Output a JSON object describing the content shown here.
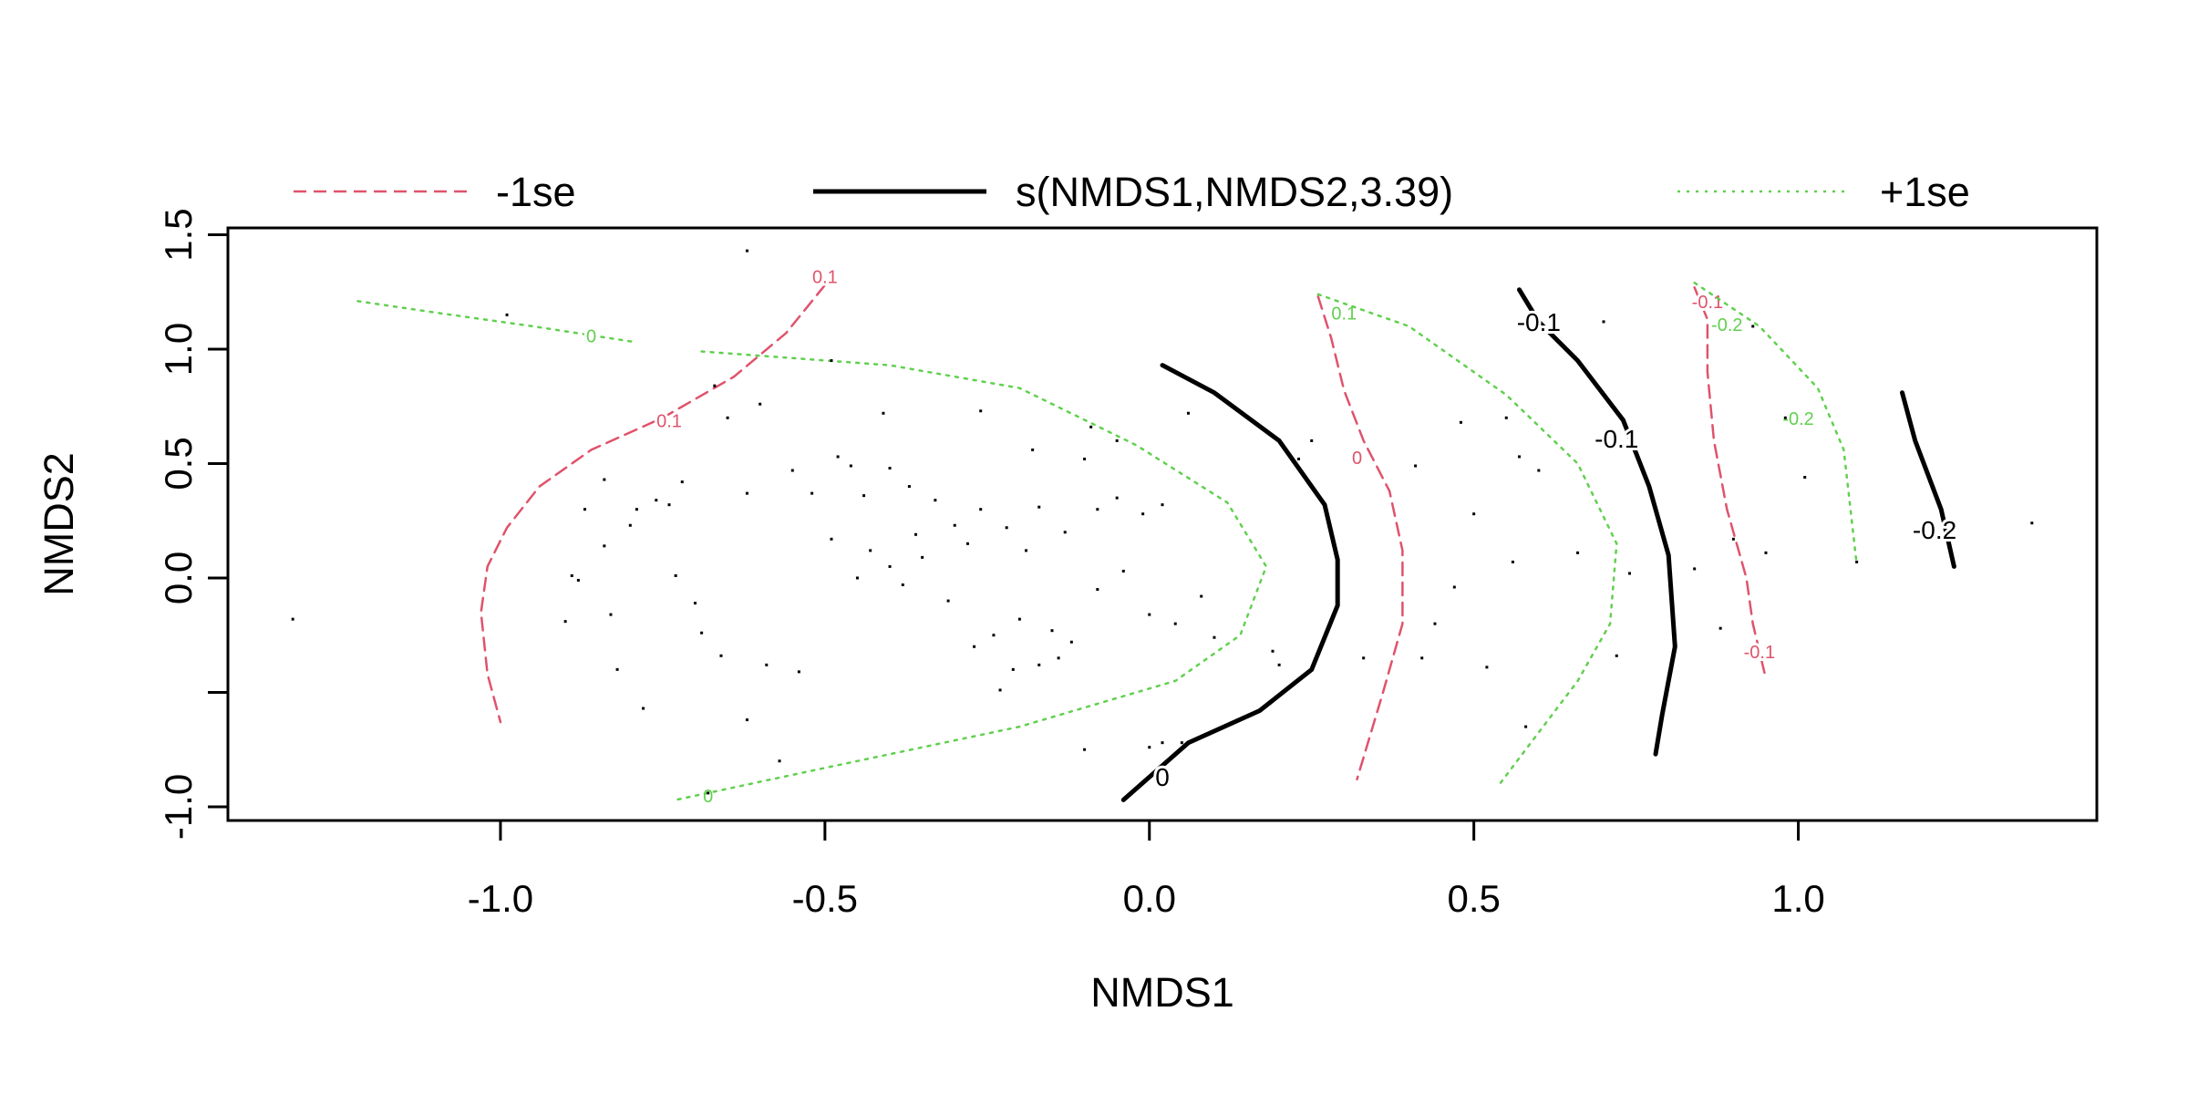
{
  "chart_data": {
    "type": "contour",
    "xlabel": "NMDS1",
    "ylabel": "NMDS2",
    "xlim": [
      -1.42,
      1.46
    ],
    "ylim": [
      -1.06,
      1.53
    ],
    "xticks": [
      -1.0,
      -0.5,
      0.0,
      0.5,
      1.0
    ],
    "xtick_labels": [
      "-1.0",
      "-0.5",
      "0.0",
      "0.5",
      "1.0"
    ],
    "yticks": [
      -1.0,
      -0.5,
      0.0,
      0.5,
      1.0,
      1.5
    ],
    "ytick_labels": [
      "-1.0",
      "",
      "0.0",
      "0.5",
      "1.0",
      "1.5"
    ],
    "grid": false,
    "legend_position": "top",
    "legend": [
      {
        "label": "-1se",
        "style": "dashed",
        "color": "#DF536B"
      },
      {
        "label": "s(NMDS1,NMDS2,3.39)",
        "style": "solid",
        "color": "#000000"
      },
      {
        "label": "+1se",
        "style": "dotted",
        "color": "#61D04F"
      }
    ],
    "contours": [
      {
        "series": "-1se",
        "level": "0.1",
        "label_at": [
          [
            -0.5,
            1.31
          ],
          [
            -0.74,
            0.68
          ]
        ],
        "points": [
          [
            -0.5,
            1.28
          ],
          [
            -0.56,
            1.07
          ],
          [
            -0.64,
            0.88
          ],
          [
            -0.75,
            0.7
          ],
          [
            -0.86,
            0.56
          ],
          [
            -0.94,
            0.4
          ],
          [
            -0.99,
            0.22
          ],
          [
            -1.02,
            0.05
          ],
          [
            -1.03,
            -0.15
          ],
          [
            -1.02,
            -0.42
          ],
          [
            -1.0,
            -0.63
          ]
        ]
      },
      {
        "series": "-1se",
        "level": "0",
        "label_at": [
          [
            0.32,
            0.52
          ]
        ],
        "points": [
          [
            0.26,
            1.23
          ],
          [
            0.28,
            1.05
          ],
          [
            0.3,
            0.82
          ],
          [
            0.33,
            0.6
          ],
          [
            0.37,
            0.38
          ],
          [
            0.39,
            0.12
          ],
          [
            0.39,
            -0.2
          ],
          [
            0.36,
            -0.5
          ],
          [
            0.32,
            -0.88
          ]
        ]
      },
      {
        "series": "-1se",
        "level": "-0.1",
        "label_at": [
          [
            0.86,
            1.2
          ],
          [
            0.94,
            -0.33
          ]
        ],
        "points": [
          [
            0.84,
            1.27
          ],
          [
            0.86,
            1.13
          ],
          [
            0.86,
            0.9
          ],
          [
            0.87,
            0.6
          ],
          [
            0.89,
            0.3
          ],
          [
            0.92,
            0.0
          ],
          [
            0.93,
            -0.2
          ],
          [
            0.95,
            -0.44
          ]
        ]
      },
      {
        "series": "s(NMDS1,NMDS2,3.39)",
        "level": "0",
        "label_at": [
          [
            0.02,
            -0.88
          ]
        ],
        "points": [
          [
            0.02,
            0.93
          ],
          [
            0.1,
            0.81
          ],
          [
            0.2,
            0.6
          ],
          [
            0.27,
            0.32
          ],
          [
            0.29,
            0.08
          ],
          [
            0.29,
            -0.12
          ],
          [
            0.25,
            -0.4
          ],
          [
            0.17,
            -0.58
          ],
          [
            0.06,
            -0.72
          ],
          [
            -0.04,
            -0.97
          ]
        ]
      },
      {
        "series": "s(NMDS1,NMDS2,3.39)",
        "level": "-0.1",
        "label_at": [
          [
            0.6,
            1.11
          ],
          [
            0.72,
            0.6
          ]
        ],
        "points": [
          [
            0.57,
            1.26
          ],
          [
            0.6,
            1.12
          ],
          [
            0.66,
            0.95
          ],
          [
            0.73,
            0.69
          ],
          [
            0.77,
            0.4
          ],
          [
            0.8,
            0.1
          ],
          [
            0.81,
            -0.3
          ],
          [
            0.79,
            -0.6
          ],
          [
            0.78,
            -0.77
          ]
        ]
      },
      {
        "series": "s(NMDS1,NMDS2,3.39)",
        "level": "-0.2",
        "label_at": [
          [
            1.21,
            0.2
          ]
        ],
        "points": [
          [
            1.16,
            0.81
          ],
          [
            1.18,
            0.6
          ],
          [
            1.22,
            0.3
          ],
          [
            1.24,
            0.05
          ]
        ]
      },
      {
        "series": "+1se",
        "level": "0",
        "label_at": [
          [
            -0.86,
            1.05
          ],
          [
            -0.68,
            -0.96
          ]
        ],
        "points": [
          [
            -1.22,
            1.21
          ],
          [
            -1.1,
            1.16
          ],
          [
            -0.95,
            1.1
          ],
          [
            -0.79,
            1.03
          ]
        ]
      },
      {
        "series": "+1se",
        "level": "0.1",
        "label_at": [
          [
            0.3,
            1.15
          ]
        ],
        "points": [
          [
            -0.69,
            0.99
          ],
          [
            -0.4,
            0.93
          ],
          [
            -0.2,
            0.83
          ],
          [
            -0.02,
            0.58
          ],
          [
            0.12,
            0.33
          ],
          [
            0.18,
            0.05
          ],
          [
            0.14,
            -0.25
          ],
          [
            0.04,
            -0.45
          ],
          [
            -0.2,
            -0.65
          ],
          [
            -0.5,
            -0.83
          ],
          [
            -0.73,
            -0.97
          ]
        ]
      },
      {
        "series": "+1se",
        "level": "0",
        "label_at": [],
        "points": [
          [
            0.26,
            1.24
          ],
          [
            0.4,
            1.1
          ],
          [
            0.55,
            0.8
          ],
          [
            0.66,
            0.5
          ],
          [
            0.72,
            0.15
          ],
          [
            0.71,
            -0.2
          ],
          [
            0.66,
            -0.45
          ],
          [
            0.54,
            -0.9
          ]
        ]
      },
      {
        "series": "+1se",
        "level": "-0.2",
        "label_at": [
          [
            0.89,
            1.1
          ],
          [
            1.0,
            0.69
          ]
        ],
        "points": [
          [
            0.84,
            1.29
          ],
          [
            0.94,
            1.1
          ],
          [
            1.03,
            0.83
          ],
          [
            1.07,
            0.56
          ],
          [
            1.09,
            0.06
          ]
        ]
      }
    ],
    "points": [
      [
        -0.62,
        1.43
      ],
      [
        -0.99,
        1.15
      ],
      [
        -1.32,
        -0.18
      ],
      [
        -0.49,
        0.95
      ],
      [
        -0.65,
        0.7
      ],
      [
        -0.67,
        0.84
      ],
      [
        -0.6,
        0.76
      ],
      [
        -0.41,
        0.72
      ],
      [
        -0.26,
        0.73
      ],
      [
        -0.18,
        0.56
      ],
      [
        -0.1,
        0.52
      ],
      [
        -0.09,
        0.66
      ],
      [
        -0.05,
        0.6
      ],
      [
        0.06,
        0.72
      ],
      [
        0.23,
        0.52
      ],
      [
        0.25,
        0.6
      ],
      [
        0.41,
        0.49
      ],
      [
        0.48,
        0.68
      ],
      [
        0.55,
        0.7
      ],
      [
        0.6,
        0.47
      ],
      [
        0.57,
        0.53
      ],
      [
        0.7,
        1.12
      ],
      [
        0.93,
        1.1
      ],
      [
        0.98,
        0.7
      ],
      [
        1.01,
        0.44
      ],
      [
        0.9,
        0.17
      ],
      [
        0.84,
        0.04
      ],
      [
        0.88,
        -0.22
      ],
      [
        1.36,
        0.24
      ],
      [
        -0.84,
        0.43
      ],
      [
        -0.79,
        0.3
      ],
      [
        -0.8,
        0.23
      ],
      [
        -0.87,
        0.3
      ],
      [
        -0.84,
        0.14
      ],
      [
        -0.89,
        0.01
      ],
      [
        -0.88,
        -0.01
      ],
      [
        -0.76,
        0.34
      ],
      [
        -0.74,
        0.32
      ],
      [
        -0.72,
        0.42
      ],
      [
        -0.62,
        0.37
      ],
      [
        -0.55,
        0.47
      ],
      [
        -0.52,
        0.37
      ],
      [
        -0.48,
        0.53
      ],
      [
        -0.46,
        0.49
      ],
      [
        -0.44,
        0.36
      ],
      [
        -0.4,
        0.48
      ],
      [
        -0.37,
        0.4
      ],
      [
        -0.33,
        0.34
      ],
      [
        -0.36,
        0.19
      ],
      [
        -0.3,
        0.23
      ],
      [
        -0.28,
        0.15
      ],
      [
        -0.26,
        0.3
      ],
      [
        -0.22,
        0.22
      ],
      [
        -0.19,
        0.12
      ],
      [
        -0.17,
        0.31
      ],
      [
        -0.13,
        0.2
      ],
      [
        -0.08,
        0.3
      ],
      [
        -0.05,
        0.35
      ],
      [
        -0.01,
        0.28
      ],
      [
        0.02,
        0.32
      ],
      [
        -0.49,
        0.17
      ],
      [
        -0.45,
        0.0
      ],
      [
        -0.43,
        0.12
      ],
      [
        -0.4,
        0.05
      ],
      [
        -0.38,
        -0.03
      ],
      [
        -0.35,
        0.09
      ],
      [
        -0.31,
        -0.1
      ],
      [
        -0.24,
        -0.25
      ],
      [
        -0.27,
        -0.3
      ],
      [
        -0.2,
        -0.18
      ],
      [
        -0.15,
        -0.23
      ],
      [
        -0.12,
        -0.28
      ],
      [
        -0.17,
        -0.38
      ],
      [
        -0.14,
        -0.35
      ],
      [
        -0.21,
        -0.4
      ],
      [
        -0.23,
        -0.49
      ],
      [
        -0.08,
        -0.05
      ],
      [
        -0.04,
        0.03
      ],
      [
        0.0,
        -0.16
      ],
      [
        0.04,
        -0.2
      ],
      [
        0.08,
        -0.08
      ],
      [
        0.1,
        -0.26
      ],
      [
        -0.82,
        -0.4
      ],
      [
        -0.9,
        -0.19
      ],
      [
        -0.83,
        -0.16
      ],
      [
        -0.78,
        -0.57
      ],
      [
        -0.73,
        0.01
      ],
      [
        -0.7,
        -0.11
      ],
      [
        -0.69,
        -0.24
      ],
      [
        -0.66,
        -0.34
      ],
      [
        -0.59,
        -0.38
      ],
      [
        -0.54,
        -0.41
      ],
      [
        -0.57,
        -0.8
      ],
      [
        -0.62,
        -0.62
      ],
      [
        -0.68,
        -0.94
      ],
      [
        -0.1,
        -0.75
      ],
      [
        0.0,
        -0.74
      ],
      [
        0.02,
        -0.72
      ],
      [
        0.05,
        -0.72
      ],
      [
        0.19,
        -0.32
      ],
      [
        0.2,
        -0.38
      ],
      [
        0.33,
        -0.35
      ],
      [
        0.42,
        -0.35
      ],
      [
        0.47,
        -0.04
      ],
      [
        0.52,
        -0.39
      ],
      [
        0.56,
        0.07
      ],
      [
        0.5,
        0.28
      ],
      [
        0.44,
        -0.2
      ],
      [
        0.66,
        0.11
      ],
      [
        0.58,
        -0.65
      ],
      [
        0.72,
        -0.34
      ],
      [
        0.74,
        0.02
      ],
      [
        0.95,
        0.11
      ],
      [
        1.09,
        0.07
      ]
    ]
  }
}
